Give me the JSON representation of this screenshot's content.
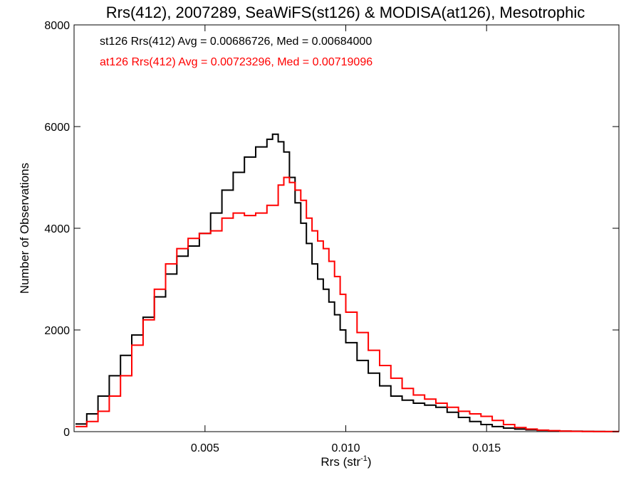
{
  "chart_data": {
    "type": "line",
    "step": true,
    "title": "Rrs(412), 2007289, SeaWiFS(st126) & MODISA(at126), Mesotrophic",
    "xlabel": "Rrs (str",
    "xlabel_sup": "-1",
    "xlabel_end": ")",
    "ylabel": "Number of Observations",
    "xlim": [
      0.00035,
      0.0197
    ],
    "ylim": [
      0,
      8000
    ],
    "xticks": [
      0.005,
      0.01,
      0.015
    ],
    "xtick_labels": [
      "0.005",
      "0.010",
      "0.015"
    ],
    "yticks": [
      0,
      2000,
      4000,
      6000,
      8000
    ],
    "ytick_labels": [
      "0",
      "2000",
      "4000",
      "6000",
      "8000"
    ],
    "annotations": [
      {
        "text": "st126 Rrs(412) Avg = 0.00686726, Med = 0.00684000",
        "color": "#000000"
      },
      {
        "text": "at126 Rrs(412) Avg = 0.00723296, Med = 0.00719096",
        "color": "#ff0000"
      }
    ],
    "series": [
      {
        "color": "#000000",
        "x": [
          0.0004,
          0.0008,
          0.0012,
          0.0016,
          0.002,
          0.0024,
          0.0028,
          0.0032,
          0.0036,
          0.004,
          0.0044,
          0.0048,
          0.0052,
          0.0056,
          0.006,
          0.0064,
          0.0068,
          0.0072,
          0.0074,
          0.0076,
          0.0078,
          0.008,
          0.0082,
          0.0084,
          0.0086,
          0.0088,
          0.009,
          0.0092,
          0.0094,
          0.0096,
          0.0098,
          0.01,
          0.0104,
          0.0108,
          0.0112,
          0.0116,
          0.012,
          0.0124,
          0.0128,
          0.0132,
          0.0136,
          0.014,
          0.0144,
          0.0148,
          0.0152,
          0.0156,
          0.016,
          0.0164,
          0.0168,
          0.0172,
          0.0176,
          0.018,
          0.0184,
          0.0188,
          0.0192,
          0.0196
        ],
        "y": [
          150,
          350,
          700,
          1100,
          1500,
          1900,
          2250,
          2650,
          3100,
          3450,
          3650,
          3900,
          4300,
          4750,
          5100,
          5400,
          5600,
          5750,
          5850,
          5700,
          5500,
          5000,
          4500,
          4100,
          3700,
          3300,
          3000,
          2800,
          2550,
          2300,
          2000,
          1750,
          1400,
          1150,
          900,
          700,
          620,
          560,
          520,
          480,
          380,
          280,
          200,
          140,
          100,
          70,
          50,
          35,
          25,
          15,
          10,
          8,
          5,
          3,
          2,
          1
        ]
      },
      {
        "color": "#ff0000",
        "x": [
          0.0004,
          0.0008,
          0.0012,
          0.0016,
          0.002,
          0.0024,
          0.0028,
          0.0032,
          0.0036,
          0.004,
          0.0044,
          0.0048,
          0.0052,
          0.0056,
          0.006,
          0.0064,
          0.0068,
          0.0072,
          0.0076,
          0.0078,
          0.008,
          0.0082,
          0.0084,
          0.0086,
          0.0088,
          0.009,
          0.0092,
          0.0094,
          0.0096,
          0.0098,
          0.01,
          0.0104,
          0.0108,
          0.0112,
          0.0116,
          0.012,
          0.0124,
          0.0128,
          0.0132,
          0.0136,
          0.014,
          0.0144,
          0.0148,
          0.0152,
          0.0156,
          0.016,
          0.0164,
          0.0168,
          0.0172,
          0.0176,
          0.018,
          0.0184,
          0.0188,
          0.0192,
          0.0196
        ],
        "y": [
          100,
          200,
          400,
          700,
          1100,
          1700,
          2200,
          2800,
          3300,
          3600,
          3800,
          3900,
          3950,
          4200,
          4300,
          4250,
          4300,
          4450,
          4850,
          5000,
          4900,
          4750,
          4550,
          4200,
          3950,
          3750,
          3600,
          3350,
          3050,
          2700,
          2350,
          1950,
          1600,
          1300,
          1050,
          850,
          720,
          640,
          560,
          480,
          400,
          350,
          300,
          220,
          140,
          80,
          50,
          30,
          20,
          10,
          6,
          4,
          2,
          1,
          1
        ]
      }
    ]
  }
}
